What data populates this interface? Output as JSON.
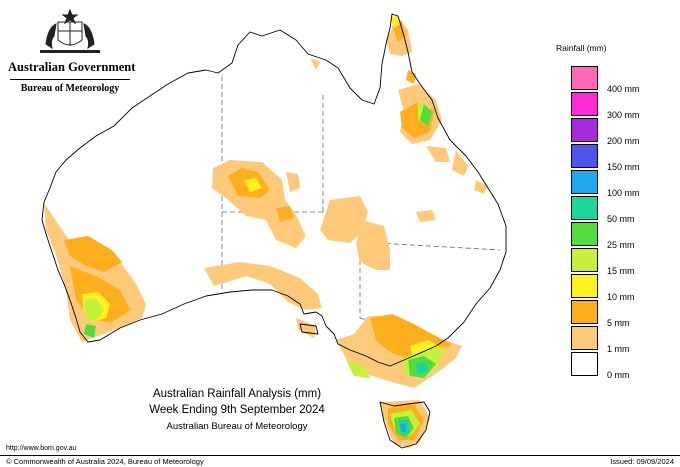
{
  "header": {
    "government": "Australian Government",
    "bureau": "Bureau of Meteorology",
    "logo_icon": "coat-of-arms-icon"
  },
  "legend": {
    "title": "Rainfall (mm)",
    "items": [
      {
        "label": "400 mm",
        "color": "#ff69b4"
      },
      {
        "label": "300 mm",
        "color": "#ff2ad4"
      },
      {
        "label": "200 mm",
        "color": "#a52adc"
      },
      {
        "label": "150 mm",
        "color": "#4e55e6"
      },
      {
        "label": "100 mm",
        "color": "#1fa6ee"
      },
      {
        "label": "50 mm",
        "color": "#1ed49c"
      },
      {
        "label": "25 mm",
        "color": "#54dc3e"
      },
      {
        "label": "15 mm",
        "color": "#c6f03a"
      },
      {
        "label": "10 mm",
        "color": "#fff21e"
      },
      {
        "label": "5 mm",
        "color": "#ffae1e"
      },
      {
        "label": "1 mm",
        "color": "#ffc97a"
      },
      {
        "label": "0 mm",
        "color": "#ffffff"
      }
    ]
  },
  "caption": {
    "line1": "Australian Rainfall Analysis (mm)",
    "line2": "Week Ending 9th September 2024",
    "line3": "Australian Bureau of Meteorology"
  },
  "footer": {
    "url": "http://www.bom.gov.au",
    "copyright": "© Commonwealth of Australia 2024, Bureau of Meteorology",
    "issued": "Issued: 09/09/2024"
  }
}
